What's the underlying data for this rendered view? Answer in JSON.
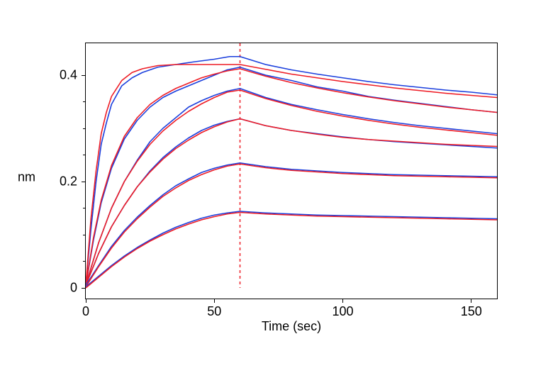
{
  "chart": {
    "type": "line",
    "xlabel": "Time (sec)",
    "ylabel": "nm",
    "watermark_text": "",
    "background_color": "#ffffff",
    "axis_color": "#000000",
    "label_fontsize": 18,
    "tick_fontsize": 18,
    "xlim": [
      0,
      160
    ],
    "ylim": [
      -0.02,
      0.46
    ],
    "xticks": [
      0,
      50,
      100,
      150
    ],
    "yticks": [
      0,
      0.2,
      0.4
    ],
    "yticks_minor": [
      0.05,
      0.1,
      0.15,
      0.25,
      0.3,
      0.35
    ],
    "vline": {
      "x": 60,
      "color": "#ee1c25",
      "dash": "4,4",
      "width": 1.5
    },
    "line_width": 1.6,
    "colors": {
      "data": "#1b3fdd",
      "fit": "#ee1c25"
    },
    "series": [
      {
        "name": "curve1-data",
        "color_key": "data",
        "points": [
          [
            0,
            0.005
          ],
          [
            2,
            0.11
          ],
          [
            4,
            0.2
          ],
          [
            6,
            0.27
          ],
          [
            8,
            0.31
          ],
          [
            10,
            0.345
          ],
          [
            14,
            0.38
          ],
          [
            18,
            0.395
          ],
          [
            22,
            0.405
          ],
          [
            28,
            0.415
          ],
          [
            35,
            0.42
          ],
          [
            42,
            0.425
          ],
          [
            50,
            0.43
          ],
          [
            56,
            0.435
          ],
          [
            60,
            0.435
          ],
          [
            70,
            0.42
          ],
          [
            80,
            0.41
          ],
          [
            90,
            0.402
          ],
          [
            100,
            0.395
          ],
          [
            110,
            0.388
          ],
          [
            120,
            0.382
          ],
          [
            130,
            0.377
          ],
          [
            140,
            0.372
          ],
          [
            150,
            0.368
          ],
          [
            160,
            0.363
          ]
        ]
      },
      {
        "name": "curve1-fit",
        "color_key": "fit",
        "points": [
          [
            0,
            0.005
          ],
          [
            2,
            0.13
          ],
          [
            4,
            0.22
          ],
          [
            6,
            0.29
          ],
          [
            8,
            0.33
          ],
          [
            10,
            0.36
          ],
          [
            14,
            0.39
          ],
          [
            18,
            0.405
          ],
          [
            22,
            0.412
          ],
          [
            28,
            0.418
          ],
          [
            35,
            0.42
          ],
          [
            42,
            0.42
          ],
          [
            50,
            0.42
          ],
          [
            56,
            0.42
          ],
          [
            60,
            0.42
          ],
          [
            70,
            0.411
          ],
          [
            80,
            0.402
          ],
          [
            90,
            0.395
          ],
          [
            100,
            0.388
          ],
          [
            110,
            0.382
          ],
          [
            120,
            0.376
          ],
          [
            130,
            0.371
          ],
          [
            140,
            0.366
          ],
          [
            150,
            0.362
          ],
          [
            160,
            0.358
          ]
        ]
      },
      {
        "name": "curve2-data",
        "color_key": "data",
        "points": [
          [
            0,
            0.005
          ],
          [
            3,
            0.09
          ],
          [
            6,
            0.16
          ],
          [
            10,
            0.225
          ],
          [
            15,
            0.28
          ],
          [
            20,
            0.315
          ],
          [
            25,
            0.34
          ],
          [
            30,
            0.358
          ],
          [
            35,
            0.37
          ],
          [
            40,
            0.38
          ],
          [
            45,
            0.39
          ],
          [
            50,
            0.4
          ],
          [
            55,
            0.41
          ],
          [
            60,
            0.415
          ],
          [
            70,
            0.4
          ],
          [
            80,
            0.39
          ],
          [
            90,
            0.378
          ],
          [
            100,
            0.37
          ],
          [
            110,
            0.36
          ],
          [
            120,
            0.353
          ],
          [
            130,
            0.347
          ],
          [
            140,
            0.341
          ],
          [
            150,
            0.335
          ],
          [
            160,
            0.33
          ]
        ]
      },
      {
        "name": "curve2-fit",
        "color_key": "fit",
        "points": [
          [
            0,
            0.005
          ],
          [
            3,
            0.095
          ],
          [
            6,
            0.165
          ],
          [
            10,
            0.23
          ],
          [
            15,
            0.285
          ],
          [
            20,
            0.32
          ],
          [
            25,
            0.345
          ],
          [
            30,
            0.362
          ],
          [
            35,
            0.375
          ],
          [
            40,
            0.385
          ],
          [
            45,
            0.395
          ],
          [
            50,
            0.402
          ],
          [
            55,
            0.408
          ],
          [
            60,
            0.412
          ],
          [
            70,
            0.398
          ],
          [
            80,
            0.386
          ],
          [
            90,
            0.376
          ],
          [
            100,
            0.367
          ],
          [
            110,
            0.359
          ],
          [
            120,
            0.352
          ],
          [
            130,
            0.346
          ],
          [
            140,
            0.34
          ],
          [
            150,
            0.335
          ],
          [
            160,
            0.33
          ]
        ]
      },
      {
        "name": "curve3-data",
        "color_key": "data",
        "points": [
          [
            0,
            0.005
          ],
          [
            5,
            0.085
          ],
          [
            10,
            0.15
          ],
          [
            15,
            0.2
          ],
          [
            20,
            0.24
          ],
          [
            25,
            0.275
          ],
          [
            30,
            0.3
          ],
          [
            35,
            0.32
          ],
          [
            40,
            0.34
          ],
          [
            45,
            0.352
          ],
          [
            50,
            0.362
          ],
          [
            55,
            0.37
          ],
          [
            60,
            0.375
          ],
          [
            70,
            0.358
          ],
          [
            80,
            0.345
          ],
          [
            90,
            0.335
          ],
          [
            100,
            0.326
          ],
          [
            110,
            0.318
          ],
          [
            120,
            0.311
          ],
          [
            130,
            0.305
          ],
          [
            140,
            0.3
          ],
          [
            150,
            0.295
          ],
          [
            160,
            0.29
          ]
        ]
      },
      {
        "name": "curve3-fit",
        "color_key": "fit",
        "points": [
          [
            0,
            0.005
          ],
          [
            5,
            0.085
          ],
          [
            10,
            0.15
          ],
          [
            15,
            0.2
          ],
          [
            20,
            0.238
          ],
          [
            25,
            0.27
          ],
          [
            30,
            0.295
          ],
          [
            35,
            0.315
          ],
          [
            40,
            0.332
          ],
          [
            45,
            0.346
          ],
          [
            50,
            0.358
          ],
          [
            55,
            0.368
          ],
          [
            60,
            0.372
          ],
          [
            70,
            0.356
          ],
          [
            80,
            0.343
          ],
          [
            90,
            0.332
          ],
          [
            100,
            0.323
          ],
          [
            110,
            0.315
          ],
          [
            120,
            0.308
          ],
          [
            130,
            0.302
          ],
          [
            140,
            0.297
          ],
          [
            150,
            0.292
          ],
          [
            160,
            0.287
          ]
        ]
      },
      {
        "name": "curve4-data",
        "color_key": "data",
        "points": [
          [
            0,
            0.005
          ],
          [
            5,
            0.065
          ],
          [
            10,
            0.115
          ],
          [
            15,
            0.155
          ],
          [
            20,
            0.19
          ],
          [
            25,
            0.22
          ],
          [
            30,
            0.245
          ],
          [
            35,
            0.265
          ],
          [
            40,
            0.282
          ],
          [
            45,
            0.296
          ],
          [
            50,
            0.306
          ],
          [
            55,
            0.313
          ],
          [
            60,
            0.318
          ],
          [
            70,
            0.305
          ],
          [
            80,
            0.296
          ],
          [
            90,
            0.29
          ],
          [
            100,
            0.284
          ],
          [
            110,
            0.279
          ],
          [
            120,
            0.275
          ],
          [
            130,
            0.272
          ],
          [
            140,
            0.269
          ],
          [
            150,
            0.266
          ],
          [
            160,
            0.263
          ]
        ]
      },
      {
        "name": "curve4-fit",
        "color_key": "fit",
        "points": [
          [
            0,
            0.005
          ],
          [
            5,
            0.065
          ],
          [
            10,
            0.115
          ],
          [
            15,
            0.155
          ],
          [
            20,
            0.19
          ],
          [
            25,
            0.218
          ],
          [
            30,
            0.242
          ],
          [
            35,
            0.262
          ],
          [
            40,
            0.278
          ],
          [
            45,
            0.292
          ],
          [
            50,
            0.303
          ],
          [
            55,
            0.312
          ],
          [
            60,
            0.318
          ],
          [
            70,
            0.305
          ],
          [
            80,
            0.296
          ],
          [
            90,
            0.289
          ],
          [
            100,
            0.283
          ],
          [
            110,
            0.279
          ],
          [
            120,
            0.276
          ],
          [
            130,
            0.273
          ],
          [
            140,
            0.27
          ],
          [
            150,
            0.268
          ],
          [
            160,
            0.266
          ]
        ]
      },
      {
        "name": "curve5-data",
        "color_key": "data",
        "points": [
          [
            0,
            0.005
          ],
          [
            5,
            0.042
          ],
          [
            10,
            0.078
          ],
          [
            15,
            0.108
          ],
          [
            20,
            0.133
          ],
          [
            25,
            0.155
          ],
          [
            30,
            0.175
          ],
          [
            35,
            0.192
          ],
          [
            40,
            0.205
          ],
          [
            45,
            0.217
          ],
          [
            50,
            0.225
          ],
          [
            55,
            0.231
          ],
          [
            60,
            0.235
          ],
          [
            70,
            0.228
          ],
          [
            80,
            0.223
          ],
          [
            90,
            0.22
          ],
          [
            100,
            0.217
          ],
          [
            110,
            0.215
          ],
          [
            120,
            0.213
          ],
          [
            130,
            0.212
          ],
          [
            140,
            0.211
          ],
          [
            150,
            0.21
          ],
          [
            160,
            0.209
          ]
        ]
      },
      {
        "name": "curve5-fit",
        "color_key": "fit",
        "points": [
          [
            0,
            0.002
          ],
          [
            5,
            0.04
          ],
          [
            10,
            0.075
          ],
          [
            15,
            0.105
          ],
          [
            20,
            0.13
          ],
          [
            25,
            0.152
          ],
          [
            30,
            0.172
          ],
          [
            35,
            0.188
          ],
          [
            40,
            0.202
          ],
          [
            45,
            0.213
          ],
          [
            50,
            0.222
          ],
          [
            55,
            0.229
          ],
          [
            60,
            0.233
          ],
          [
            70,
            0.226
          ],
          [
            80,
            0.221
          ],
          [
            90,
            0.218
          ],
          [
            100,
            0.215
          ],
          [
            110,
            0.213
          ],
          [
            120,
            0.211
          ],
          [
            130,
            0.21
          ],
          [
            140,
            0.209
          ],
          [
            150,
            0.208
          ],
          [
            160,
            0.207
          ]
        ]
      },
      {
        "name": "curve6-data",
        "color_key": "data",
        "points": [
          [
            0,
            0.002
          ],
          [
            5,
            0.022
          ],
          [
            10,
            0.042
          ],
          [
            15,
            0.06
          ],
          [
            20,
            0.076
          ],
          [
            25,
            0.09
          ],
          [
            30,
            0.103
          ],
          [
            35,
            0.114
          ],
          [
            40,
            0.123
          ],
          [
            45,
            0.131
          ],
          [
            50,
            0.137
          ],
          [
            55,
            0.141
          ],
          [
            60,
            0.144
          ],
          [
            70,
            0.141
          ],
          [
            80,
            0.139
          ],
          [
            90,
            0.137
          ],
          [
            100,
            0.136
          ],
          [
            110,
            0.135
          ],
          [
            120,
            0.134
          ],
          [
            130,
            0.133
          ],
          [
            140,
            0.132
          ],
          [
            150,
            0.131
          ],
          [
            160,
            0.13
          ]
        ]
      },
      {
        "name": "curve6-fit",
        "color_key": "fit",
        "points": [
          [
            0,
            0.0
          ],
          [
            5,
            0.02
          ],
          [
            10,
            0.04
          ],
          [
            15,
            0.058
          ],
          [
            20,
            0.074
          ],
          [
            25,
            0.088
          ],
          [
            30,
            0.1
          ],
          [
            35,
            0.111
          ],
          [
            40,
            0.12
          ],
          [
            45,
            0.128
          ],
          [
            50,
            0.134
          ],
          [
            55,
            0.139
          ],
          [
            60,
            0.142
          ],
          [
            70,
            0.139
          ],
          [
            80,
            0.137
          ],
          [
            90,
            0.135
          ],
          [
            100,
            0.134
          ],
          [
            110,
            0.133
          ],
          [
            120,
            0.132
          ],
          [
            130,
            0.131
          ],
          [
            140,
            0.13
          ],
          [
            150,
            0.129
          ],
          [
            160,
            0.128
          ]
        ]
      }
    ]
  }
}
